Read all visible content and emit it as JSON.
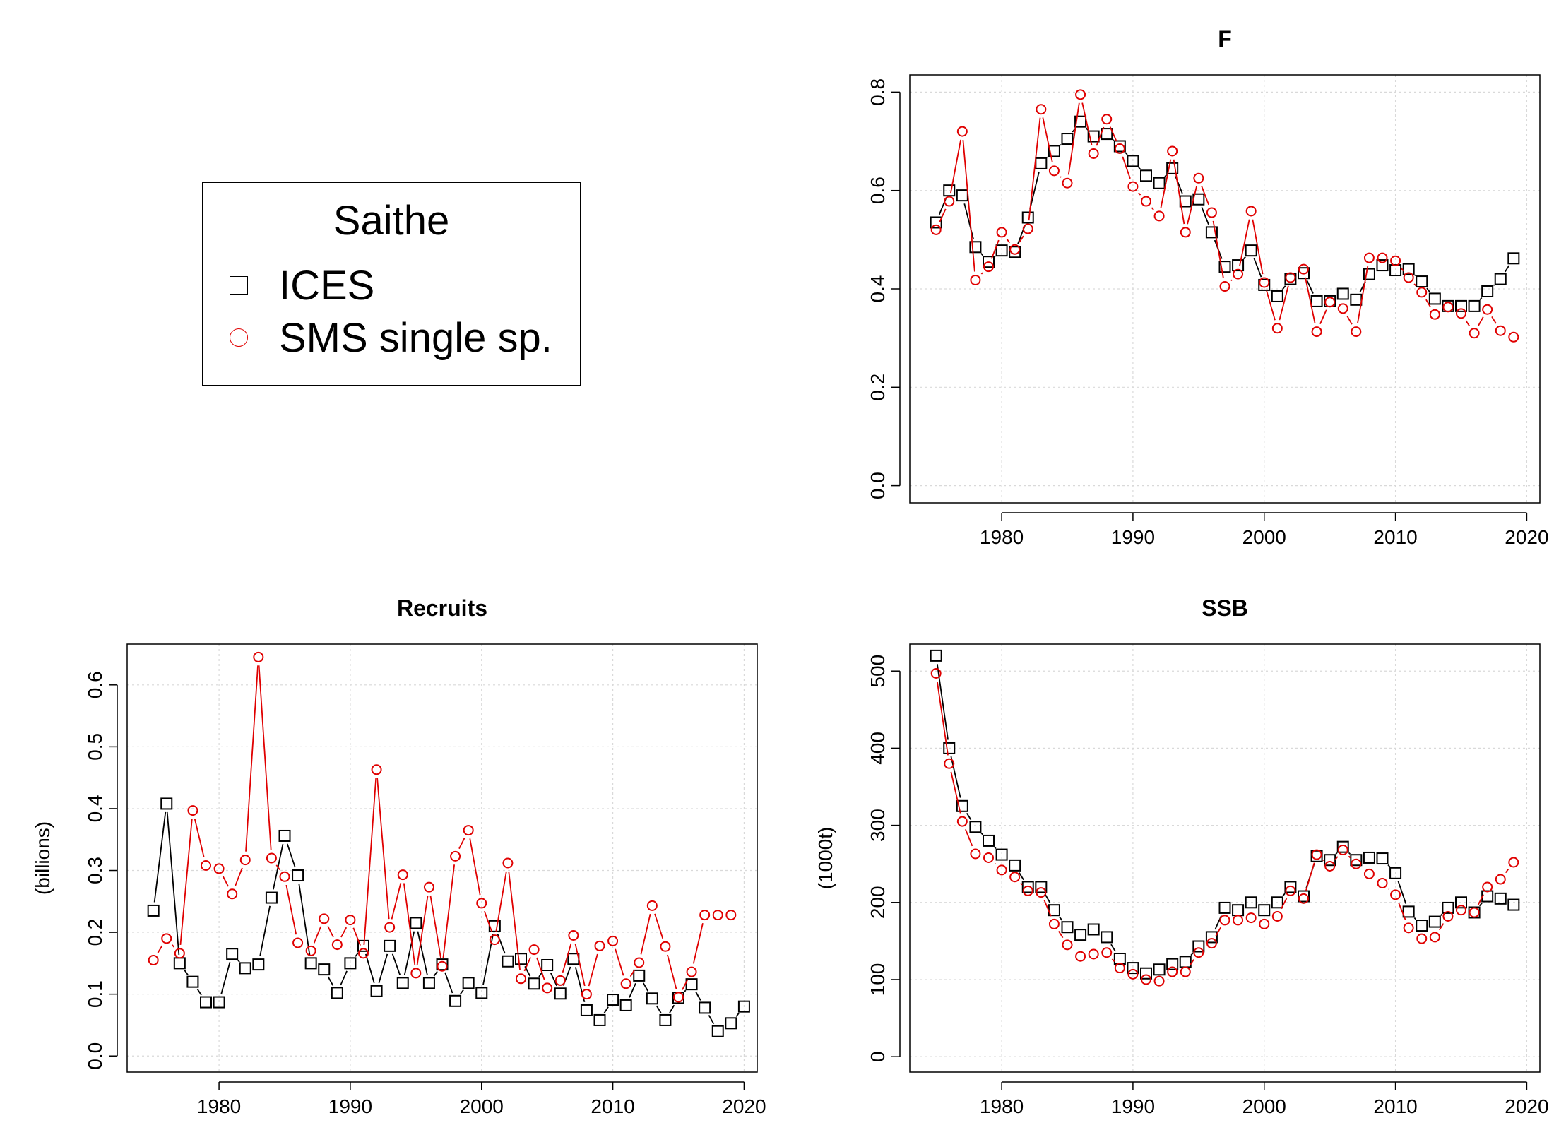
{
  "legend": {
    "title": "Saithe",
    "entries": [
      {
        "label": "ICES",
        "symbol": "square",
        "color": "#000000"
      },
      {
        "label": "SMS single sp.",
        "symbol": "circle",
        "color": "#e00000"
      }
    ]
  },
  "chart_data": [
    {
      "id": "F",
      "type": "line",
      "title": "F",
      "xlabel": "",
      "ylabel": "",
      "xlim": [
        1973,
        2021
      ],
      "ylim": [
        -0.035,
        0.835
      ],
      "xticks": [
        1980,
        1990,
        2000,
        2010,
        2020
      ],
      "yticks": [
        0.0,
        0.2,
        0.4,
        0.6,
        0.8
      ],
      "ytick_labels": [
        "0.0",
        "0.2",
        "0.4",
        "0.6",
        "0.8"
      ],
      "grid": true,
      "x": [
        1975,
        1976,
        1977,
        1978,
        1979,
        1980,
        1981,
        1982,
        1983,
        1984,
        1985,
        1986,
        1987,
        1988,
        1989,
        1990,
        1991,
        1992,
        1993,
        1994,
        1995,
        1996,
        1997,
        1998,
        1999,
        2000,
        2001,
        2002,
        2003,
        2004,
        2005,
        2006,
        2007,
        2008,
        2009,
        2010,
        2011,
        2012,
        2013,
        2014,
        2015,
        2016,
        2017,
        2018,
        2019
      ],
      "series": [
        {
          "name": "ICES",
          "color": "#000000",
          "marker": "square",
          "values": [
            0.535,
            0.6,
            0.59,
            0.485,
            0.455,
            0.478,
            0.475,
            0.545,
            0.655,
            0.68,
            0.705,
            0.74,
            0.71,
            0.715,
            0.69,
            0.66,
            0.63,
            0.615,
            0.645,
            0.578,
            0.582,
            0.515,
            0.445,
            0.448,
            0.478,
            0.408,
            0.385,
            0.42,
            0.432,
            0.375,
            0.375,
            0.39,
            0.378,
            0.43,
            0.448,
            0.438,
            0.44,
            0.415,
            0.38,
            0.365,
            0.365,
            0.365,
            0.395,
            0.42,
            0.462
          ]
        },
        {
          "name": "SMS single sp.",
          "color": "#e00000",
          "marker": "circle",
          "values": [
            0.52,
            0.578,
            0.72,
            0.418,
            0.445,
            0.515,
            0.48,
            0.522,
            0.765,
            0.64,
            0.615,
            0.795,
            0.675,
            0.745,
            0.685,
            0.608,
            0.578,
            0.548,
            0.68,
            0.515,
            0.625,
            0.555,
            0.405,
            0.43,
            0.558,
            0.413,
            0.32,
            0.423,
            0.44,
            0.313,
            0.373,
            0.36,
            0.313,
            0.463,
            0.463,
            0.457,
            0.423,
            0.393,
            0.348,
            0.363,
            0.35,
            0.31,
            0.358,
            0.315,
            0.302
          ]
        }
      ]
    },
    {
      "id": "Recruits",
      "type": "line",
      "title": "Recruits",
      "xlabel": "",
      "ylabel": "(billions)",
      "xlim": [
        1973,
        2021
      ],
      "ylim": [
        -0.026,
        0.666
      ],
      "xticks": [
        1980,
        1990,
        2000,
        2010,
        2020
      ],
      "yticks": [
        0.0,
        0.1,
        0.2,
        0.3,
        0.4,
        0.5,
        0.6
      ],
      "ytick_labels": [
        "0.0",
        "0.1",
        "0.2",
        "0.3",
        "0.4",
        "0.5",
        "0.6"
      ],
      "grid": true,
      "x": [
        1975,
        1976,
        1977,
        1978,
        1979,
        1980,
        1981,
        1982,
        1983,
        1984,
        1985,
        1986,
        1987,
        1988,
        1989,
        1990,
        1991,
        1992,
        1993,
        1994,
        1995,
        1996,
        1997,
        1998,
        1999,
        2000,
        2001,
        2002,
        2003,
        2004,
        2005,
        2006,
        2007,
        2008,
        2009,
        2010,
        2011,
        2012,
        2013,
        2014,
        2015,
        2016,
        2017,
        2018,
        2019,
        2020
      ],
      "series": [
        {
          "name": "ICES",
          "color": "#000000",
          "marker": "square",
          "values": [
            0.235,
            0.408,
            0.15,
            0.12,
            0.087,
            0.087,
            0.165,
            0.142,
            0.148,
            0.256,
            0.356,
            0.292,
            0.15,
            0.14,
            0.102,
            0.15,
            0.178,
            0.105,
            0.178,
            0.118,
            0.215,
            0.118,
            0.148,
            0.089,
            0.118,
            0.102,
            0.21,
            0.153,
            0.157,
            0.117,
            0.147,
            0.101,
            0.157,
            0.074,
            0.058,
            0.091,
            0.082,
            0.13,
            0.093,
            0.058,
            0.094,
            0.116,
            0.078,
            0.04,
            0.053,
            0.08
          ]
        },
        {
          "name": "SMS single sp.",
          "color": "#e00000",
          "marker": "circle",
          "values": [
            0.155,
            0.19,
            0.166,
            0.397,
            0.308,
            0.303,
            0.262,
            0.317,
            0.645,
            0.32,
            0.29,
            0.183,
            0.17,
            0.222,
            0.18,
            0.22,
            0.166,
            0.463,
            0.208,
            0.293,
            0.134,
            0.273,
            0.145,
            0.323,
            0.365,
            0.247,
            0.188,
            0.312,
            0.125,
            0.172,
            0.11,
            0.122,
            0.195,
            0.1,
            0.178,
            0.186,
            0.117,
            0.151,
            0.243,
            0.177,
            0.095,
            0.136,
            0.228,
            0.228,
            0.228,
            null
          ]
        }
      ]
    },
    {
      "id": "SSB",
      "type": "line",
      "title": "SSB",
      "xlabel": "",
      "ylabel": "(1000t)",
      "xlim": [
        1973,
        2021
      ],
      "ylim": [
        -20,
        535
      ],
      "xticks": [
        1980,
        1990,
        2000,
        2010,
        2020
      ],
      "yticks": [
        0,
        100,
        200,
        300,
        400,
        500
      ],
      "ytick_labels": [
        "0",
        "100",
        "200",
        "300",
        "400",
        "500"
      ],
      "grid": true,
      "x": [
        1975,
        1976,
        1977,
        1978,
        1979,
        1980,
        1981,
        1982,
        1983,
        1984,
        1985,
        1986,
        1987,
        1988,
        1989,
        1990,
        1991,
        1992,
        1993,
        1994,
        1995,
        1996,
        1997,
        1998,
        1999,
        2000,
        2001,
        2002,
        2003,
        2004,
        2005,
        2006,
        2007,
        2008,
        2009,
        2010,
        2011,
        2012,
        2013,
        2014,
        2015,
        2016,
        2017,
        2018,
        2019
      ],
      "series": [
        {
          "name": "ICES",
          "color": "#000000",
          "marker": "square",
          "values": [
            520,
            400,
            325,
            298,
            280,
            262,
            248,
            220,
            220,
            190,
            168,
            158,
            165,
            155,
            127,
            115,
            108,
            113,
            120,
            123,
            143,
            155,
            193,
            190,
            200,
            190,
            200,
            220,
            208,
            260,
            255,
            272,
            255,
            258,
            257,
            238,
            188,
            170,
            175,
            193,
            200,
            187,
            208,
            205,
            197
          ]
        },
        {
          "name": "SMS single sp.",
          "color": "#e00000",
          "marker": "circle",
          "values": [
            497,
            380,
            305,
            263,
            258,
            242,
            233,
            215,
            213,
            172,
            145,
            130,
            133,
            135,
            115,
            107,
            100,
            98,
            110,
            110,
            135,
            147,
            177,
            177,
            180,
            172,
            182,
            215,
            205,
            262,
            247,
            268,
            250,
            237,
            225,
            210,
            167,
            153,
            155,
            182,
            190,
            187,
            220,
            230,
            252
          ]
        }
      ]
    }
  ]
}
